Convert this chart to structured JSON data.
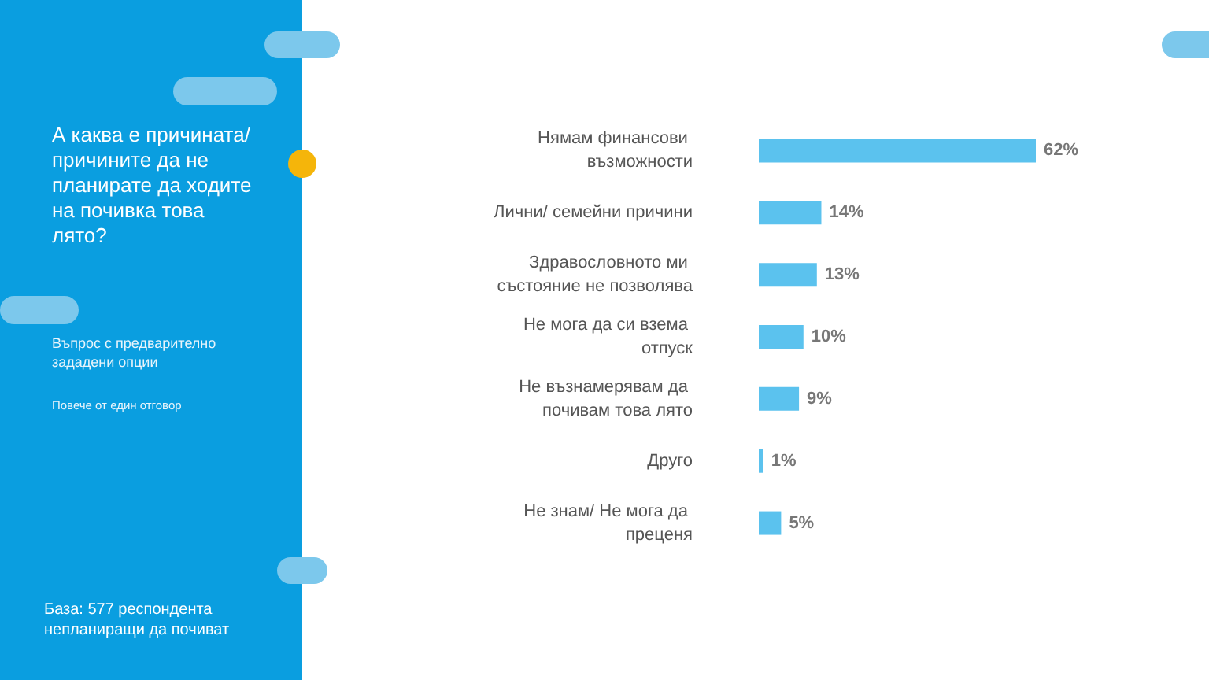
{
  "chart_data": {
    "type": "bar",
    "orientation": "horizontal",
    "title": "А каква е причината/ причините да не планирате да ходите на почивка това лято?",
    "annotations": [
      "Въпрос с предварително зададени опции",
      "Повече от един отговор",
      "База: 577 респондента непланиращи  да почиват"
    ],
    "categories": [
      "Нямам финансови възможности",
      "Лични/ семейни причини",
      "Здравословното ми състояние не позволява",
      "Не мога да си взема отпуск",
      "Не възнамерявам да почивам това лято",
      "Друго",
      "Не знам/ Не мога да преценя"
    ],
    "values": [
      62,
      14,
      13,
      10,
      9,
      1,
      5
    ],
    "value_labels": [
      "62%",
      "14%",
      "13%",
      "10%",
      "9%",
      "1%",
      "5%"
    ],
    "color": "#5bc2ee"
  }
}
